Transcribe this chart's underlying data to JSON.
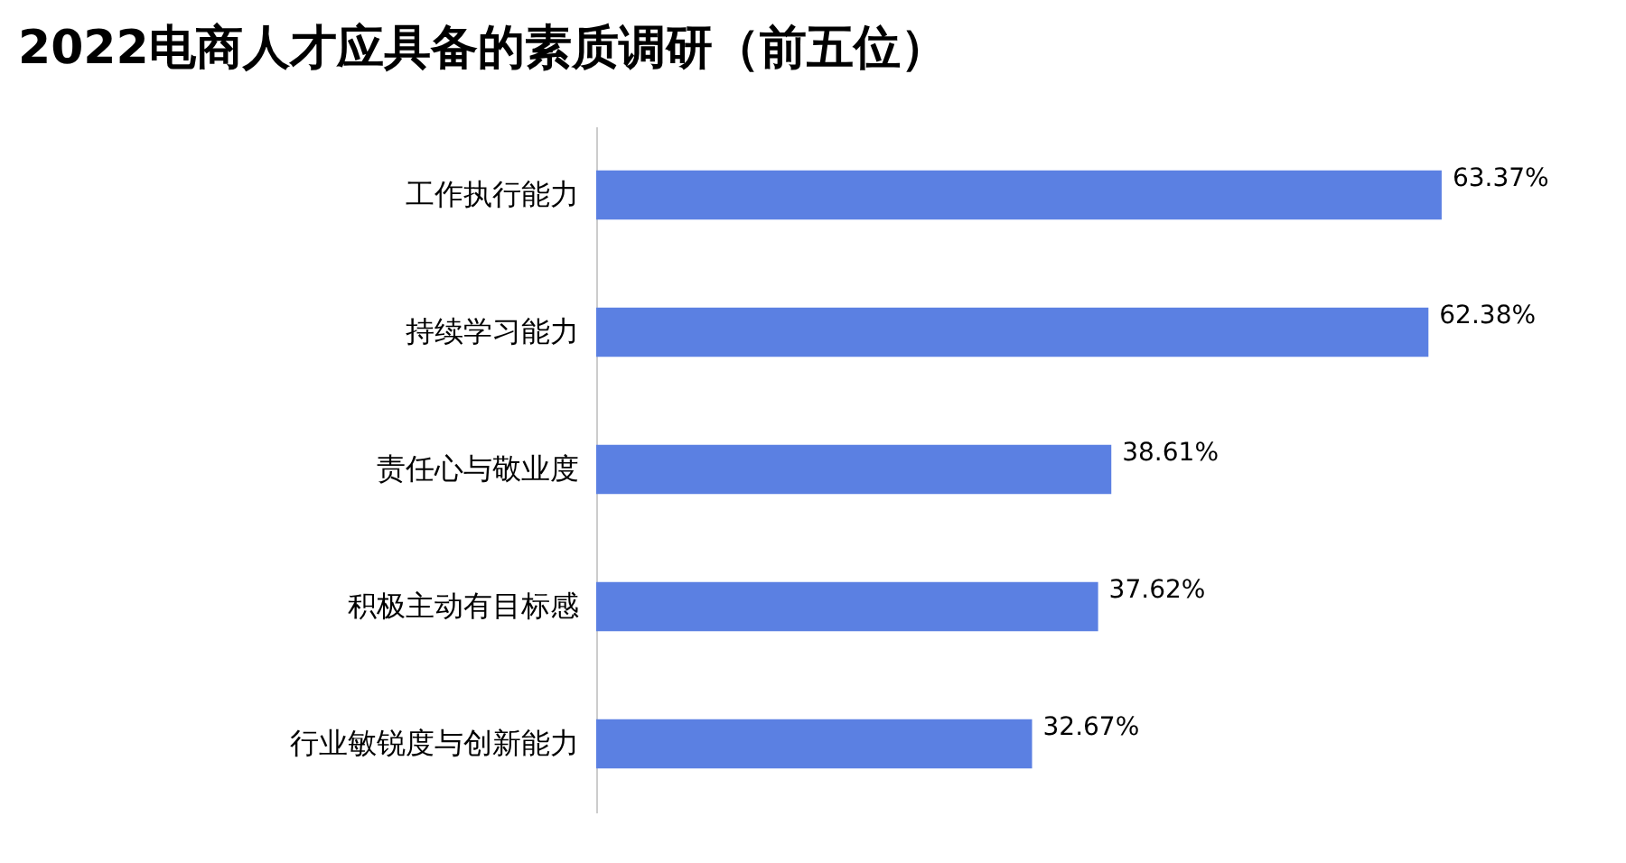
{
  "chart_data": {
    "type": "bar",
    "orientation": "horizontal",
    "title": "2022电商人才应具备的素质调研（前五位）",
    "categories": [
      "工作执行能力",
      "持续学习能力",
      "责任心与敬业度",
      "积极主动有目标感",
      "行业敏锐度与创新能力"
    ],
    "values": [
      63.37,
      62.38,
      38.61,
      37.62,
      32.67
    ],
    "value_labels": [
      "63.37%",
      "62.38%",
      "38.61%",
      "37.62%",
      "32.67%"
    ],
    "color": "#5b80e2"
  }
}
